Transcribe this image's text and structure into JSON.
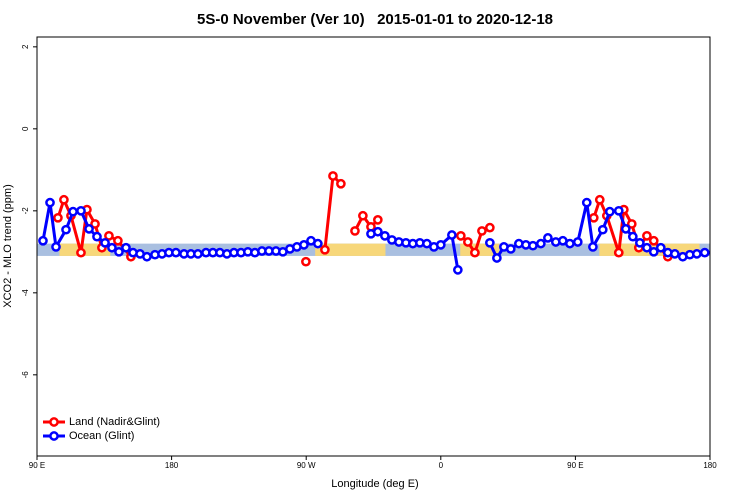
{
  "chart_data": {
    "type": "line",
    "title": "5S-0 November (Ver 10)   2015-01-01 to 2020-12-18",
    "x_label": "Longitude (deg E)",
    "y_label": "XCO2 - MLO trend (ppm)",
    "xlim": [
      90,
      540
    ],
    "ylim": [
      -7.98,
      2.24
    ],
    "xticks": [
      {
        "value": 90,
        "label": "90 E"
      },
      180,
      {
        "value": 270,
        "label": "90 W"
      },
      {
        "value": 360,
        "label": "0"
      },
      {
        "value": 450,
        "label": "90 E"
      },
      {
        "value": 540,
        "label": "180"
      }
    ],
    "yticks": [
      2,
      0,
      -2,
      -4,
      -6
    ],
    "band": {
      "ylim": [
        -3.1,
        -2.8
      ],
      "color": "#a9bfe0",
      "highlight_color": "#f7d77a",
      "highlight_x": [
        [
          105,
          139
        ],
        [
          276,
          323
        ],
        [
          373,
          399
        ],
        [
          466,
          533
        ]
      ]
    },
    "legend": "bottom-left",
    "series": [
      {
        "name": "Land (Nadir&Glint)",
        "color": "#ff0000",
        "x": [
          104,
          108,
          112.7,
          119.4,
          123.4,
          128.8,
          133.4,
          138.1,
          144.1,
          152.8,
          null,
          269.8,
          null,
          282.5,
          287.9,
          293.2,
          null,
          302.6,
          307.9,
          313.3,
          317.9,
          null,
          373.4,
          378.1,
          382.8,
          387.5,
          392.8,
          null,
          462.3,
          466.3,
          471,
          479,
          482.4,
          487.7,
          492.4,
          497.8,
          502.4,
          511.8
        ],
        "values": [
          -2.17,
          -1.73,
          -2.12,
          -3.02,
          -1.97,
          -2.32,
          -2.9,
          -2.61,
          -2.73,
          -3.12,
          null,
          -3.24,
          null,
          -2.95,
          -1.15,
          -1.34,
          null,
          -2.49,
          -2.12,
          -2.39,
          -2.22,
          null,
          -2.61,
          -2.76,
          -3.02,
          -2.49,
          -2.41,
          null,
          -2.17,
          -1.73,
          -2.12,
          -3.02,
          -1.97,
          -2.32,
          -2.9,
          -2.61,
          -2.73,
          -3.12
        ]
      },
      {
        "name": "Ocean (Glint)",
        "color": "#0000ff",
        "x": [
          94,
          98.7,
          102.7,
          109.4,
          114.1,
          119.4,
          124.8,
          130.1,
          135.5,
          140.1,
          144.8,
          149.5,
          154.2,
          158.9,
          163.5,
          168.9,
          173.6,
          178.2,
          182.9,
          188.3,
          192.9,
          197.6,
          203,
          207.6,
          212.3,
          217,
          221.7,
          226.4,
          231,
          235.7,
          240.4,
          245.1,
          249.8,
          254.4,
          259.1,
          263.8,
          268.5,
          273.2,
          277.8,
          null,
          313.3,
          317.9,
          322.6,
          327.3,
          332,
          336.7,
          341.3,
          346,
          350.7,
          355.4,
          360,
          367.4,
          371.4,
          null,
          392.8,
          397.5,
          402.2,
          406.8,
          412.2,
          416.9,
          421.6,
          426.9,
          431.6,
          436.9,
          441.6,
          446.3,
          451.6,
          457.6,
          461.7,
          468.3,
          473,
          479,
          483.7,
          488.4,
          493.1,
          497.8,
          502.4,
          507.1,
          511.8,
          516.5,
          521.8,
          526.5,
          531.2,
          536.5
        ],
        "values": [
          -2.73,
          -1.8,
          -2.88,
          -2.46,
          -2.02,
          -2.0,
          -2.44,
          -2.63,
          -2.78,
          -2.9,
          -3.0,
          -2.9,
          -3.02,
          -3.05,
          -3.12,
          -3.07,
          -3.05,
          -3.02,
          -3.02,
          -3.05,
          -3.05,
          -3.05,
          -3.02,
          -3.02,
          -3.02,
          -3.05,
          -3.02,
          -3.02,
          -3.0,
          -3.02,
          -2.98,
          -2.98,
          -2.98,
          -3.0,
          -2.93,
          -2.88,
          -2.83,
          -2.73,
          -2.8,
          null,
          -2.56,
          -2.51,
          -2.61,
          -2.71,
          -2.76,
          -2.78,
          -2.8,
          -2.78,
          -2.8,
          -2.88,
          -2.83,
          -2.59,
          -3.44,
          null,
          -2.78,
          -3.15,
          -2.88,
          -2.93,
          -2.8,
          -2.83,
          -2.85,
          -2.8,
          -2.66,
          -2.76,
          -2.73,
          -2.8,
          -2.76,
          -1.8,
          -2.88,
          -2.46,
          -2.02,
          -2.0,
          -2.44,
          -2.63,
          -2.78,
          -2.9,
          -3.0,
          -2.9,
          -3.02,
          -3.05,
          -3.12,
          -3.07,
          -3.05,
          -3.02
        ]
      }
    ]
  }
}
